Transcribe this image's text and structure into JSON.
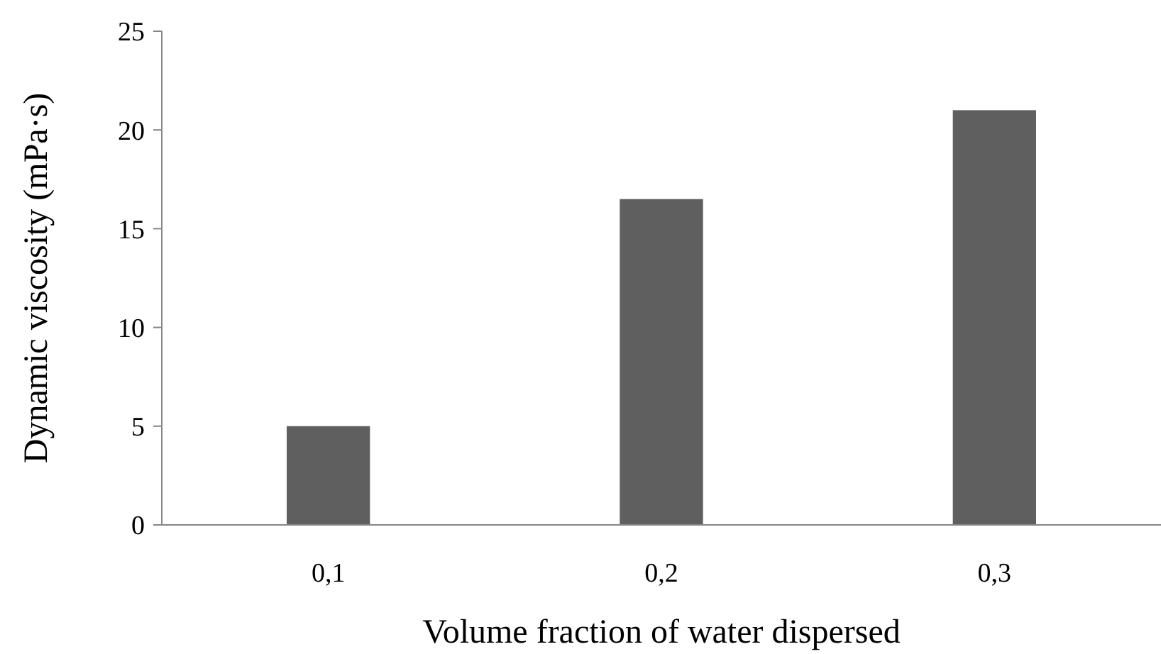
{
  "chart_data": {
    "type": "bar",
    "xlabel": "Volume fraction of water dispersed",
    "ylabel": "Dynamic viscosity (mPa·s)",
    "categories": [
      "0,1",
      "0,2",
      "0,3"
    ],
    "values": [
      5,
      16.5,
      21
    ],
    "color": "#5f5f5f",
    "ylim": [
      0,
      25
    ],
    "yticks": [
      0,
      5,
      10,
      15,
      20,
      25
    ],
    "grid": false
  }
}
